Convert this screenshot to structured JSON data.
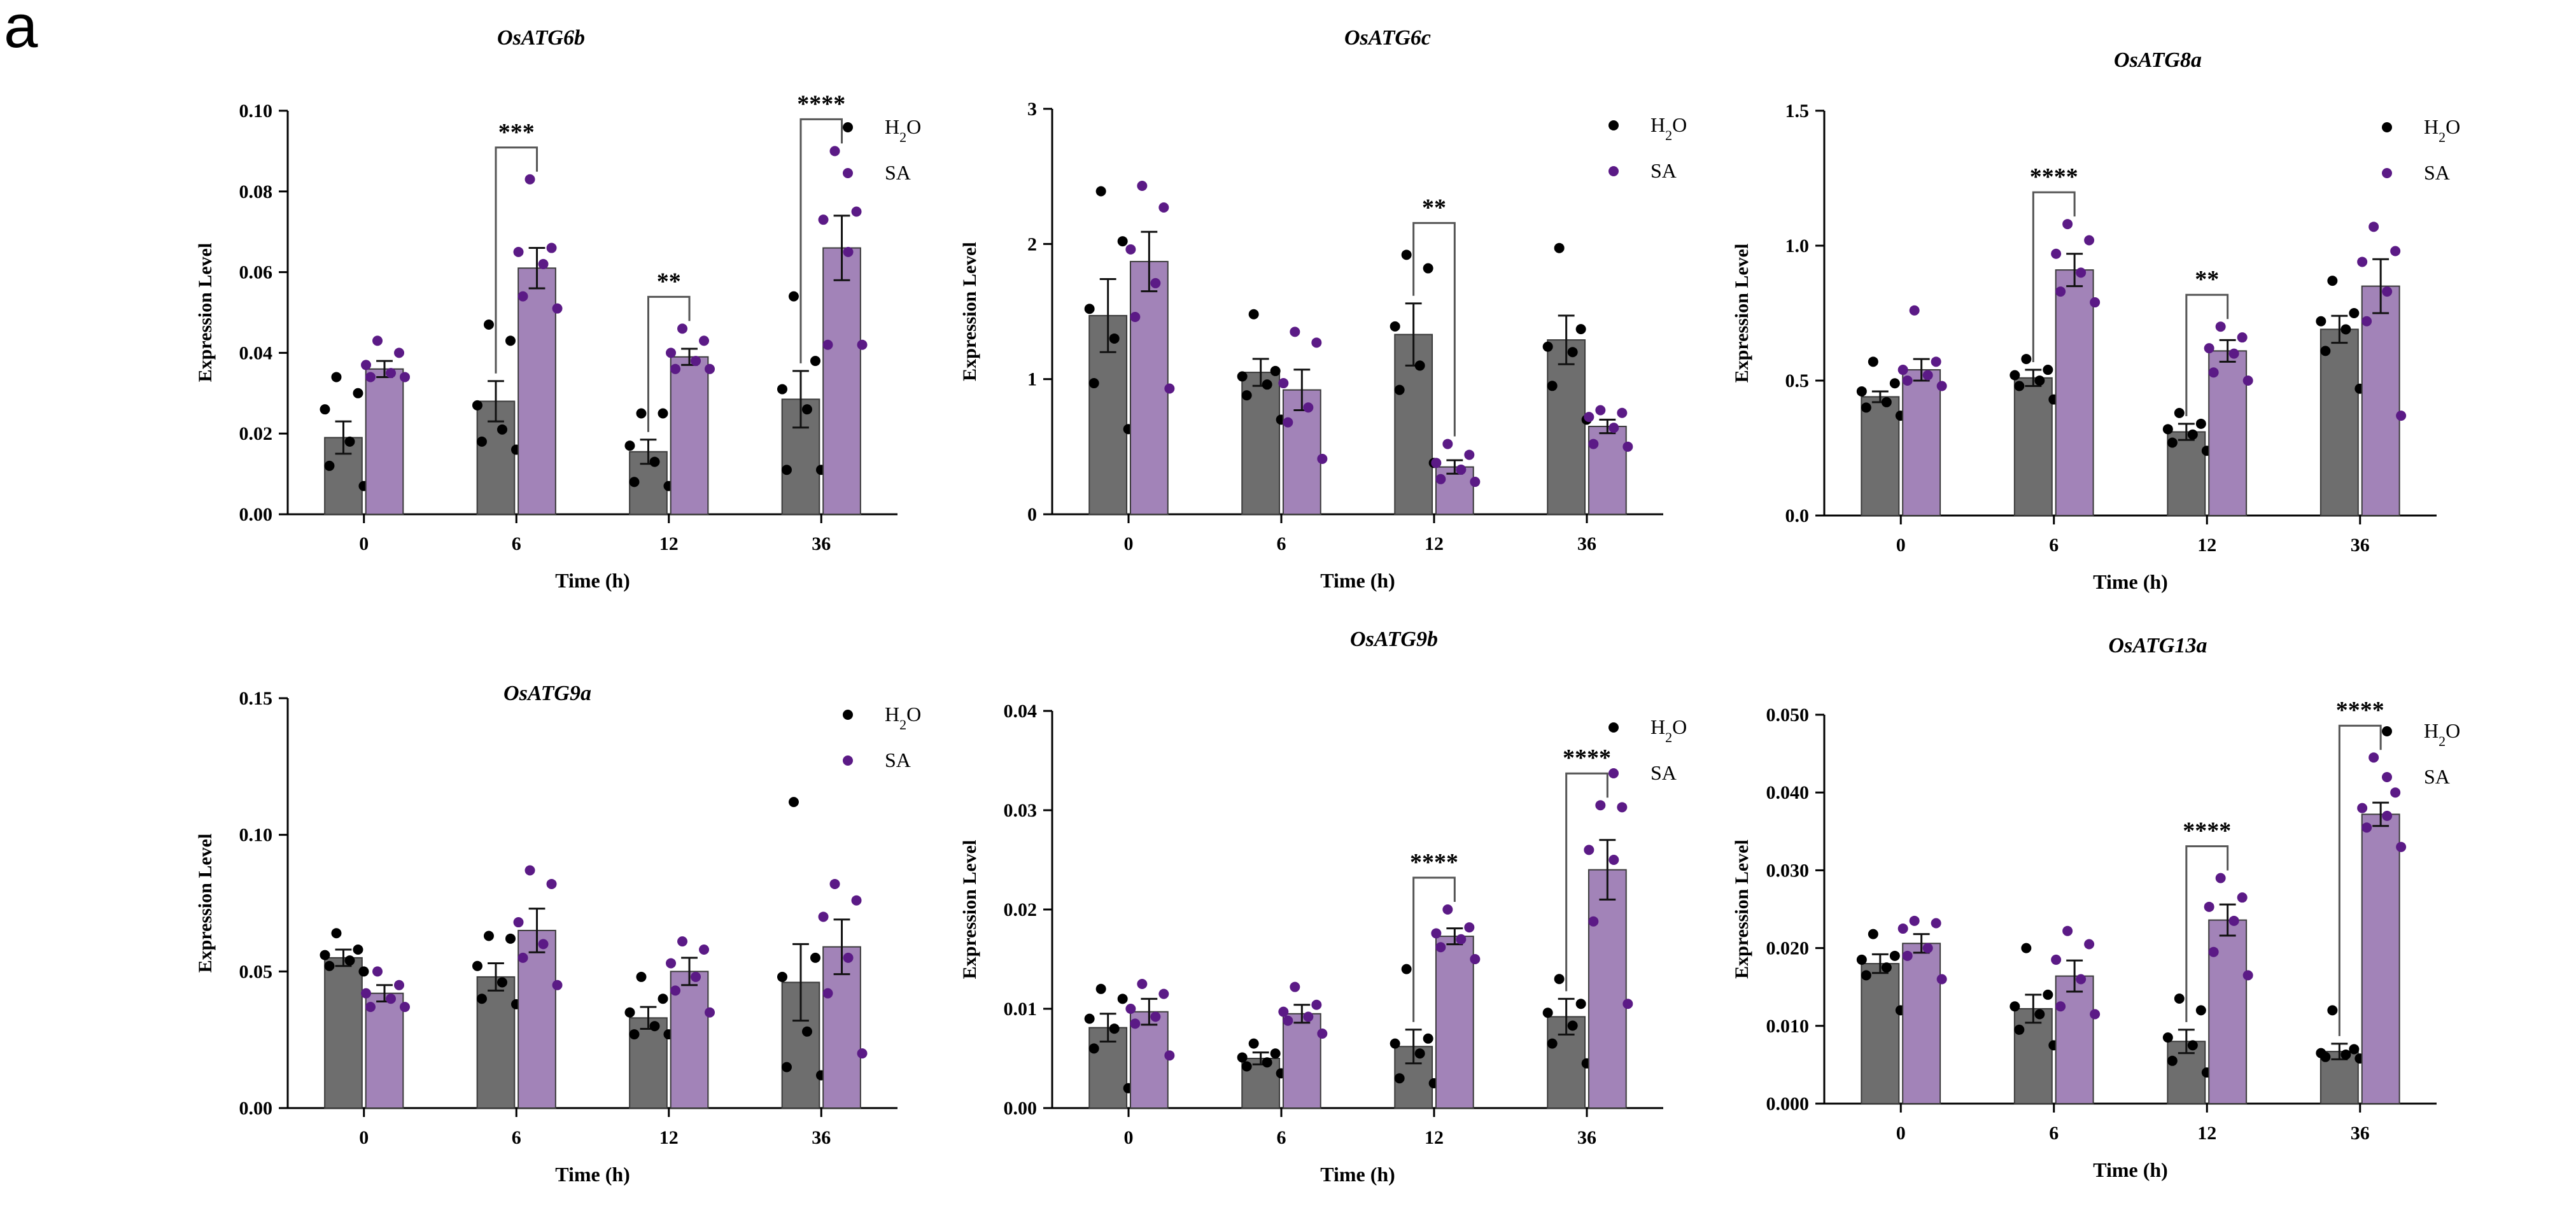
{
  "figure_label": "a",
  "colors": {
    "h2o_bar": "#6e6e6e",
    "sa_bar": "#a283b8",
    "h2o_dot": "#000000",
    "sa_dot": "#5b1a86",
    "axis": "#000000"
  },
  "chart_data": [
    {
      "type": "bar",
      "title": "OsATG6b",
      "xlabel": "Time (h)",
      "ylabel": "Expression Level",
      "categories": [
        "0",
        "6",
        "12",
        "36"
      ],
      "ylim": [
        0,
        0.1
      ],
      "yticks": [
        0,
        0.02,
        0.04,
        0.06,
        0.08,
        0.1
      ],
      "ytick_labels": [
        "0.00",
        "0.02",
        "0.04",
        "0.06",
        "0.08",
        "0.10"
      ],
      "legend": {
        "position": "top-right",
        "entries": [
          "H2O",
          "SA"
        ]
      },
      "series": [
        {
          "name": "H2O",
          "values": [
            0.019,
            0.028,
            0.0155,
            0.0285
          ],
          "errors": [
            0.004,
            0.005,
            0.003,
            0.007
          ],
          "points": [
            [
              0.034,
              0.03,
              0.026,
              0.018,
              0.012,
              0.007
            ],
            [
              0.047,
              0.043,
              0.027,
              0.021,
              0.018,
              0.016
            ],
            [
              0.025,
              0.025,
              0.017,
              0.013,
              0.008,
              0.007
            ],
            [
              0.054,
              0.038,
              0.031,
              0.026,
              0.011,
              0.011
            ]
          ]
        },
        {
          "name": "SA",
          "values": [
            0.036,
            0.061,
            0.039,
            0.066
          ],
          "errors": [
            0.002,
            0.005,
            0.002,
            0.008
          ],
          "points": [
            [
              0.043,
              0.04,
              0.037,
              0.035,
              0.034,
              0.034
            ],
            [
              0.083,
              0.066,
              0.065,
              0.062,
              0.054,
              0.051
            ],
            [
              0.046,
              0.043,
              0.04,
              0.038,
              0.036,
              0.036
            ],
            [
              0.09,
              0.075,
              0.073,
              0.065,
              0.042,
              0.042
            ]
          ]
        }
      ],
      "significance": [
        {
          "category": "6",
          "label": "***"
        },
        {
          "category": "12",
          "label": "**"
        },
        {
          "category": "36",
          "label": "****"
        }
      ]
    },
    {
      "type": "bar",
      "title": "OsATG6c",
      "xlabel": "Time (h)",
      "ylabel": "Expression Level",
      "categories": [
        "0",
        "6",
        "12",
        "36"
      ],
      "ylim": [
        0,
        3
      ],
      "yticks": [
        0,
        1,
        2,
        3
      ],
      "ytick_labels": [
        "0",
        "1",
        "2",
        "3"
      ],
      "legend": {
        "position": "top-right",
        "entries": [
          "H2O",
          "SA"
        ]
      },
      "series": [
        {
          "name": "H2O",
          "values": [
            1.47,
            1.05,
            1.33,
            1.29
          ],
          "errors": [
            0.27,
            0.1,
            0.23,
            0.18
          ],
          "points": [
            [
              2.39,
              2.02,
              1.52,
              1.3,
              0.97,
              0.63
            ],
            [
              1.48,
              1.06,
              1.02,
              0.96,
              0.88,
              0.7
            ],
            [
              1.92,
              1.82,
              1.39,
              1.1,
              0.92,
              0.38
            ],
            [
              1.97,
              1.37,
              1.24,
              1.2,
              0.95,
              0.7
            ]
          ]
        },
        {
          "name": "SA",
          "values": [
            1.87,
            0.92,
            0.35,
            0.65
          ],
          "errors": [
            0.22,
            0.15,
            0.05,
            0.05
          ],
          "points": [
            [
              2.43,
              2.27,
              1.96,
              1.71,
              1.46,
              0.93
            ],
            [
              1.35,
              1.27,
              0.97,
              0.79,
              0.68,
              0.41
            ],
            [
              0.52,
              0.44,
              0.38,
              0.33,
              0.26,
              0.24
            ],
            [
              0.77,
              0.75,
              0.72,
              0.64,
              0.52,
              0.5
            ]
          ]
        }
      ],
      "significance": [
        {
          "category": "12",
          "label": "**"
        }
      ]
    },
    {
      "type": "bar",
      "title": "OsATG8a",
      "xlabel": "Time (h)",
      "ylabel": "Expression Level",
      "categories": [
        "0",
        "6",
        "12",
        "36"
      ],
      "ylim": [
        0,
        1.5
      ],
      "yticks": [
        0,
        0.5,
        1.0,
        1.5
      ],
      "ytick_labels": [
        "0.0",
        "0.5",
        "1.0",
        "1.5"
      ],
      "legend": {
        "position": "top-right",
        "entries": [
          "H2O",
          "SA"
        ]
      },
      "series": [
        {
          "name": "H2O",
          "values": [
            0.44,
            0.51,
            0.31,
            0.69
          ],
          "errors": [
            0.02,
            0.03,
            0.03,
            0.05
          ],
          "points": [
            [
              0.57,
              0.49,
              0.46,
              0.42,
              0.4,
              0.37
            ],
            [
              0.58,
              0.54,
              0.52,
              0.5,
              0.48,
              0.43
            ],
            [
              0.38,
              0.34,
              0.32,
              0.3,
              0.27,
              0.24
            ],
            [
              0.87,
              0.75,
              0.72,
              0.69,
              0.61,
              0.47
            ]
          ]
        },
        {
          "name": "SA",
          "values": [
            0.54,
            0.91,
            0.61,
            0.85
          ],
          "errors": [
            0.04,
            0.06,
            0.04,
            0.1
          ],
          "points": [
            [
              0.76,
              0.57,
              0.54,
              0.52,
              0.5,
              0.48
            ],
            [
              1.08,
              1.02,
              0.97,
              0.9,
              0.83,
              0.79
            ],
            [
              0.7,
              0.66,
              0.62,
              0.6,
              0.53,
              0.5
            ],
            [
              1.07,
              0.98,
              0.94,
              0.83,
              0.72,
              0.37
            ]
          ]
        }
      ],
      "significance": [
        {
          "category": "6",
          "label": "****"
        },
        {
          "category": "12",
          "label": "**"
        }
      ]
    },
    {
      "type": "bar",
      "title": "OsATG9a",
      "xlabel": "Time (h)",
      "ylabel": "Expression Level",
      "categories": [
        "0",
        "6",
        "12",
        "36"
      ],
      "ylim": [
        0,
        0.15
      ],
      "yticks": [
        0,
        0.05,
        0.1,
        0.15
      ],
      "ytick_labels": [
        "0.00",
        "0.05",
        "0.10",
        "0.15"
      ],
      "legend": {
        "position": "top-right",
        "entries": [
          "H2O",
          "SA"
        ]
      },
      "series": [
        {
          "name": "H2O",
          "values": [
            0.055,
            0.048,
            0.033,
            0.046
          ],
          "errors": [
            0.003,
            0.005,
            0.004,
            0.014
          ],
          "points": [
            [
              0.064,
              0.058,
              0.056,
              0.054,
              0.052,
              0.05
            ],
            [
              0.063,
              0.062,
              0.052,
              0.046,
              0.04,
              0.038
            ],
            [
              0.048,
              0.04,
              0.035,
              0.03,
              0.027,
              0.027
            ],
            [
              0.112,
              0.055,
              0.048,
              0.028,
              0.015,
              0.012
            ]
          ]
        },
        {
          "name": "SA",
          "values": [
            0.042,
            0.065,
            0.05,
            0.059
          ],
          "errors": [
            0.003,
            0.008,
            0.005,
            0.01
          ],
          "points": [
            [
              0.05,
              0.045,
              0.042,
              0.04,
              0.037,
              0.037
            ],
            [
              0.087,
              0.082,
              0.068,
              0.06,
              0.055,
              0.045
            ],
            [
              0.061,
              0.058,
              0.053,
              0.048,
              0.043,
              0.035
            ],
            [
              0.082,
              0.076,
              0.07,
              0.055,
              0.042,
              0.02
            ]
          ]
        }
      ],
      "significance": []
    },
    {
      "type": "bar",
      "title": "OsATG9b",
      "xlabel": "Time (h)",
      "ylabel": "Expression Level",
      "categories": [
        "0",
        "6",
        "12",
        "36"
      ],
      "ylim": [
        0,
        0.04
      ],
      "yticks": [
        0,
        0.01,
        0.02,
        0.03,
        0.04
      ],
      "ytick_labels": [
        "0.00",
        "0.01",
        "0.02",
        "0.03",
        "0.04"
      ],
      "legend": {
        "position": "top-right",
        "entries": [
          "H2O",
          "SA"
        ]
      },
      "series": [
        {
          "name": "H2O",
          "values": [
            0.0081,
            0.005,
            0.0062,
            0.0092
          ],
          "errors": [
            0.0014,
            0.0006,
            0.0017,
            0.0018
          ],
          "points": [
            [
              0.012,
              0.011,
              0.009,
              0.008,
              0.006,
              0.002
            ],
            [
              0.0065,
              0.0055,
              0.0051,
              0.0046,
              0.0042,
              0.0035
            ],
            [
              0.014,
              0.007,
              0.0065,
              0.0055,
              0.003,
              0.0025
            ],
            [
              0.013,
              0.0105,
              0.0096,
              0.0083,
              0.0065,
              0.0045
            ]
          ]
        },
        {
          "name": "SA",
          "values": [
            0.0097,
            0.0095,
            0.0173,
            0.024
          ],
          "errors": [
            0.0013,
            0.0009,
            0.0008,
            0.003
          ],
          "points": [
            [
              0.0125,
              0.0115,
              0.01,
              0.0092,
              0.0085,
              0.0053
            ],
            [
              0.0122,
              0.0104,
              0.0097,
              0.0092,
              0.0088,
              0.0075
            ],
            [
              0.02,
              0.0182,
              0.0176,
              0.017,
              0.0162,
              0.015
            ],
            [
              0.0305,
              0.0303,
              0.026,
              0.025,
              0.0188,
              0.0105
            ]
          ]
        }
      ],
      "significance": [
        {
          "category": "12",
          "label": "****"
        },
        {
          "category": "36",
          "label": "****"
        }
      ]
    },
    {
      "type": "bar",
      "title": "OsATG13a",
      "xlabel": "Time (h)",
      "ylabel": "Expression Level",
      "categories": [
        "0",
        "6",
        "12",
        "36"
      ],
      "ylim": [
        0,
        0.05
      ],
      "yticks": [
        0,
        0.01,
        0.02,
        0.03,
        0.04,
        0.05
      ],
      "ytick_labels": [
        "0.000",
        "0.010",
        "0.020",
        "0.030",
        "0.040",
        "0.050"
      ],
      "legend": {
        "position": "top-right",
        "entries": [
          "H2O",
          "SA"
        ]
      },
      "series": [
        {
          "name": "H2O",
          "values": [
            0.018,
            0.0122,
            0.008,
            0.0067
          ],
          "errors": [
            0.0012,
            0.0018,
            0.0015,
            0.001
          ],
          "points": [
            [
              0.0218,
              0.019,
              0.0185,
              0.0175,
              0.0165,
              0.012
            ],
            [
              0.02,
              0.014,
              0.0125,
              0.0115,
              0.0095,
              0.0075
            ],
            [
              0.0135,
              0.012,
              0.0085,
              0.0075,
              0.0055,
              0.004
            ],
            [
              0.012,
              0.007,
              0.0065,
              0.0063,
              0.006,
              0.0058
            ]
          ]
        },
        {
          "name": "SA",
          "values": [
            0.0206,
            0.0164,
            0.0236,
            0.0372
          ],
          "errors": [
            0.0012,
            0.002,
            0.002,
            0.0015
          ],
          "points": [
            [
              0.0235,
              0.0232,
              0.0225,
              0.02,
              0.019,
              0.016
            ],
            [
              0.0222,
              0.0205,
              0.0185,
              0.016,
              0.0125,
              0.0115
            ],
            [
              0.029,
              0.0265,
              0.0253,
              0.0235,
              0.0195,
              0.0165
            ],
            [
              0.0445,
              0.04,
              0.038,
              0.037,
              0.0355,
              0.033
            ]
          ]
        }
      ],
      "significance": [
        {
          "category": "12",
          "label": "****"
        },
        {
          "category": "36",
          "label": "****"
        }
      ]
    }
  ]
}
